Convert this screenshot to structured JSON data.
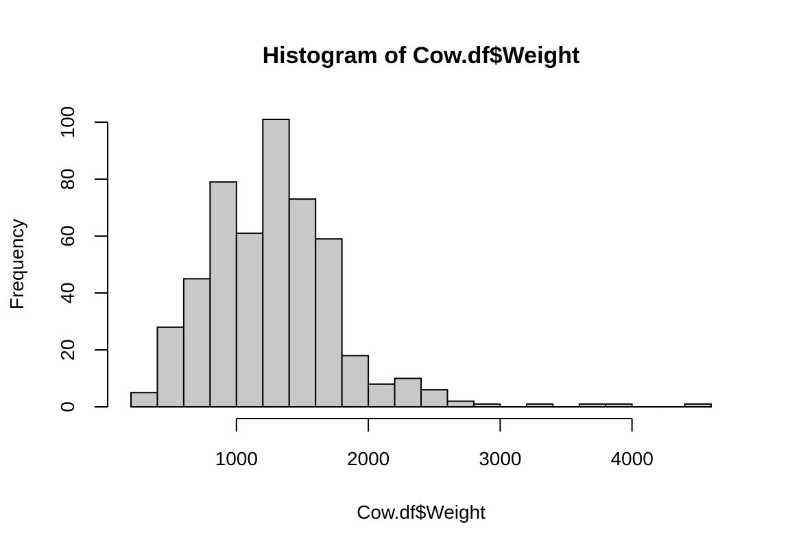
{
  "chart_data": {
    "type": "bar",
    "subtype": "histogram",
    "title": "Histogram of Cow.df$Weight",
    "xlabel": "Cow.df$Weight",
    "ylabel": "Frequency",
    "bin_width": 200,
    "bins": [
      {
        "start": 200,
        "end": 400,
        "count": 5
      },
      {
        "start": 400,
        "end": 600,
        "count": 28
      },
      {
        "start": 600,
        "end": 800,
        "count": 45
      },
      {
        "start": 800,
        "end": 1000,
        "count": 79
      },
      {
        "start": 1000,
        "end": 1200,
        "count": 61
      },
      {
        "start": 1200,
        "end": 1400,
        "count": 101
      },
      {
        "start": 1400,
        "end": 1600,
        "count": 73
      },
      {
        "start": 1600,
        "end": 1800,
        "count": 59
      },
      {
        "start": 1800,
        "end": 2000,
        "count": 18
      },
      {
        "start": 2000,
        "end": 2200,
        "count": 8
      },
      {
        "start": 2200,
        "end": 2400,
        "count": 10
      },
      {
        "start": 2400,
        "end": 2600,
        "count": 6
      },
      {
        "start": 2600,
        "end": 2800,
        "count": 2
      },
      {
        "start": 2800,
        "end": 3000,
        "count": 1
      },
      {
        "start": 3000,
        "end": 3200,
        "count": 0
      },
      {
        "start": 3200,
        "end": 3400,
        "count": 1
      },
      {
        "start": 3400,
        "end": 3600,
        "count": 0
      },
      {
        "start": 3600,
        "end": 3800,
        "count": 1
      },
      {
        "start": 3800,
        "end": 4000,
        "count": 1
      },
      {
        "start": 4000,
        "end": 4200,
        "count": 0
      },
      {
        "start": 4200,
        "end": 4400,
        "count": 0
      },
      {
        "start": 4400,
        "end": 4600,
        "count": 1
      }
    ],
    "x_ticks": [
      1000,
      2000,
      3000,
      4000
    ],
    "x_tick_labels": [
      "1000",
      "2000",
      "3000",
      "4000"
    ],
    "y_ticks": [
      0,
      20,
      40,
      60,
      80,
      100
    ],
    "y_tick_labels": [
      "0",
      "20",
      "40",
      "60",
      "80",
      "100"
    ],
    "xlim": [
      200,
      4600
    ],
    "ylim": [
      0,
      101
    ],
    "grid": false,
    "legend": "none",
    "bar_color": "#c8c8c8",
    "edge_color": "#000000"
  }
}
